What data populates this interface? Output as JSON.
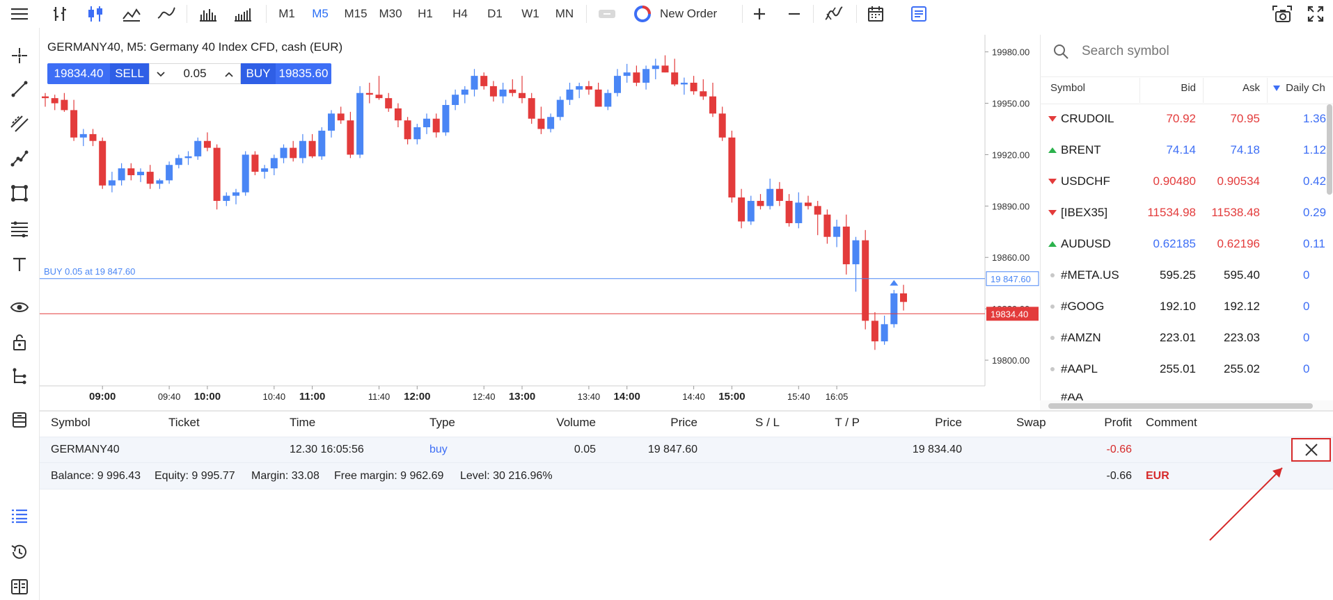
{
  "toolbar": {
    "timeframes": [
      "M1",
      "M5",
      "M15",
      "M30",
      "H1",
      "H4",
      "D1",
      "W1",
      "MN"
    ],
    "active_timeframe": "M5",
    "new_order_label": "New Order"
  },
  "chart": {
    "title": "GERMANY40, M5: Germany 40 Index CFD, cash (EUR)",
    "sell_price": "19834.40",
    "sell_label": "SELL",
    "volume": "0.05",
    "buy_label": "BUY",
    "buy_price": "19835.60",
    "position_line_label": "BUY 0.05 at 19 847.60",
    "position_price_tag": "19 847.60",
    "current_price_tag": "19834.40",
    "y_ticks": [
      "19980.00",
      "19950.00",
      "19920.00",
      "19890.00",
      "19860.00",
      "19830.00",
      "19800.00"
    ],
    "x_ticks": [
      {
        "label": "09:00",
        "bold": true
      },
      {
        "label": "09:40",
        "bold": false
      },
      {
        "label": "10:00",
        "bold": true
      },
      {
        "label": "10:40",
        "bold": false
      },
      {
        "label": "11:00",
        "bold": true
      },
      {
        "label": "11:40",
        "bold": false
      },
      {
        "label": "12:00",
        "bold": true
      },
      {
        "label": "12:40",
        "bold": false
      },
      {
        "label": "13:00",
        "bold": true
      },
      {
        "label": "13:40",
        "bold": false
      },
      {
        "label": "14:00",
        "bold": true
      },
      {
        "label": "14:40",
        "bold": false
      },
      {
        "label": "15:00",
        "bold": true
      },
      {
        "label": "15:40",
        "bold": false
      },
      {
        "label": "16:05",
        "bold": false
      }
    ],
    "colors": {
      "up": "#4a86f5",
      "down": "#e33b3b",
      "position_line": "#4a86f5",
      "price_line": "#e33b3b"
    }
  },
  "chart_data": {
    "type": "candlestick",
    "symbol": "GERMANY40",
    "timeframe": "M5",
    "ylim": [
      19785,
      19990
    ],
    "position_price": 19847.6,
    "current_price": 19834.4,
    "candles": [
      {
        "o": 19954,
        "h": 19956,
        "l": 19948,
        "c": 19953
      },
      {
        "o": 19953,
        "h": 19955,
        "l": 19946,
        "c": 19950
      },
      {
        "o": 19952,
        "h": 19956,
        "l": 19945,
        "c": 19946
      },
      {
        "o": 19946,
        "h": 19952,
        "l": 19928,
        "c": 19930
      },
      {
        "o": 19930,
        "h": 19935,
        "l": 19925,
        "c": 19932
      },
      {
        "o": 19932,
        "h": 19935,
        "l": 19925,
        "c": 19928
      },
      {
        "o": 19928,
        "h": 19930,
        "l": 19900,
        "c": 19902
      },
      {
        "o": 19902,
        "h": 19910,
        "l": 19898,
        "c": 19905
      },
      {
        "o": 19905,
        "h": 19915,
        "l": 19902,
        "c": 19912
      },
      {
        "o": 19912,
        "h": 19915,
        "l": 19905,
        "c": 19908
      },
      {
        "o": 19908,
        "h": 19912,
        "l": 19904,
        "c": 19910
      },
      {
        "o": 19910,
        "h": 19914,
        "l": 19900,
        "c": 19903
      },
      {
        "o": 19903,
        "h": 19906,
        "l": 19900,
        "c": 19905
      },
      {
        "o": 19905,
        "h": 19916,
        "l": 19903,
        "c": 19914
      },
      {
        "o": 19914,
        "h": 19920,
        "l": 19912,
        "c": 19918
      },
      {
        "o": 19918,
        "h": 19922,
        "l": 19914,
        "c": 19919
      },
      {
        "o": 19919,
        "h": 19930,
        "l": 19917,
        "c": 19928
      },
      {
        "o": 19928,
        "h": 19933,
        "l": 19922,
        "c": 19924
      },
      {
        "o": 19924,
        "h": 19926,
        "l": 19888,
        "c": 19893
      },
      {
        "o": 19893,
        "h": 19898,
        "l": 19890,
        "c": 19896
      },
      {
        "o": 19896,
        "h": 19900,
        "l": 19891,
        "c": 19898
      },
      {
        "o": 19898,
        "h": 19922,
        "l": 19896,
        "c": 19920
      },
      {
        "o": 19920,
        "h": 19922,
        "l": 19908,
        "c": 19910
      },
      {
        "o": 19910,
        "h": 19914,
        "l": 19906,
        "c": 19912
      },
      {
        "o": 19912,
        "h": 19920,
        "l": 19908,
        "c": 19918
      },
      {
        "o": 19918,
        "h": 19926,
        "l": 19915,
        "c": 19924
      },
      {
        "o": 19924,
        "h": 19928,
        "l": 19916,
        "c": 19918
      },
      {
        "o": 19918,
        "h": 19932,
        "l": 19915,
        "c": 19928
      },
      {
        "o": 19928,
        "h": 19932,
        "l": 19918,
        "c": 19919
      },
      {
        "o": 19919,
        "h": 19936,
        "l": 19917,
        "c": 19934
      },
      {
        "o": 19934,
        "h": 19946,
        "l": 19930,
        "c": 19944
      },
      {
        "o": 19944,
        "h": 19948,
        "l": 19938,
        "c": 19940
      },
      {
        "o": 19940,
        "h": 19945,
        "l": 19918,
        "c": 19920
      },
      {
        "o": 19920,
        "h": 19960,
        "l": 19918,
        "c": 19956
      },
      {
        "o": 19956,
        "h": 19962,
        "l": 19950,
        "c": 19955
      },
      {
        "o": 19955,
        "h": 19966,
        "l": 19952,
        "c": 19953
      },
      {
        "o": 19953,
        "h": 19956,
        "l": 19945,
        "c": 19947
      },
      {
        "o": 19947,
        "h": 19950,
        "l": 19936,
        "c": 19940
      },
      {
        "o": 19940,
        "h": 19942,
        "l": 19926,
        "c": 19929
      },
      {
        "o": 19929,
        "h": 19938,
        "l": 19926,
        "c": 19936
      },
      {
        "o": 19936,
        "h": 19944,
        "l": 19932,
        "c": 19941
      },
      {
        "o": 19941,
        "h": 19944,
        "l": 19930,
        "c": 19933
      },
      {
        "o": 19933,
        "h": 19952,
        "l": 19931,
        "c": 19949
      },
      {
        "o": 19949,
        "h": 19958,
        "l": 19946,
        "c": 19955
      },
      {
        "o": 19955,
        "h": 19960,
        "l": 19950,
        "c": 19958
      },
      {
        "o": 19958,
        "h": 19970,
        "l": 19954,
        "c": 19966
      },
      {
        "o": 19966,
        "h": 19968,
        "l": 19958,
        "c": 19960
      },
      {
        "o": 19960,
        "h": 19963,
        "l": 19951,
        "c": 19954
      },
      {
        "o": 19954,
        "h": 19962,
        "l": 19950,
        "c": 19958
      },
      {
        "o": 19958,
        "h": 19964,
        "l": 19954,
        "c": 19956
      },
      {
        "o": 19956,
        "h": 19966,
        "l": 19950,
        "c": 19953
      },
      {
        "o": 19953,
        "h": 19956,
        "l": 19938,
        "c": 19941
      },
      {
        "o": 19941,
        "h": 19948,
        "l": 19932,
        "c": 19935
      },
      {
        "o": 19935,
        "h": 19944,
        "l": 19933,
        "c": 19942
      },
      {
        "o": 19942,
        "h": 19954,
        "l": 19940,
        "c": 19952
      },
      {
        "o": 19952,
        "h": 19962,
        "l": 19949,
        "c": 19958
      },
      {
        "o": 19958,
        "h": 19962,
        "l": 19953,
        "c": 19960
      },
      {
        "o": 19960,
        "h": 19963,
        "l": 19955,
        "c": 19958
      },
      {
        "o": 19958,
        "h": 19962,
        "l": 19948,
        "c": 19948
      },
      {
        "o": 19948,
        "h": 19958,
        "l": 19946,
        "c": 19956
      },
      {
        "o": 19956,
        "h": 19970,
        "l": 19954,
        "c": 19966
      },
      {
        "o": 19966,
        "h": 19973,
        "l": 19962,
        "c": 19968
      },
      {
        "o": 19968,
        "h": 19972,
        "l": 19960,
        "c": 19962
      },
      {
        "o": 19962,
        "h": 19972,
        "l": 19958,
        "c": 19970
      },
      {
        "o": 19970,
        "h": 19976,
        "l": 19964,
        "c": 19972
      },
      {
        "o": 19972,
        "h": 19978,
        "l": 19968,
        "c": 19968
      },
      {
        "o": 19968,
        "h": 19976,
        "l": 19960,
        "c": 19961
      },
      {
        "o": 19961,
        "h": 19965,
        "l": 19955,
        "c": 19962
      },
      {
        "o": 19962,
        "h": 19966,
        "l": 19955,
        "c": 19957
      },
      {
        "o": 19957,
        "h": 19964,
        "l": 19952,
        "c": 19954
      },
      {
        "o": 19954,
        "h": 19962,
        "l": 19942,
        "c": 19944
      },
      {
        "o": 19944,
        "h": 19948,
        "l": 19928,
        "c": 19930
      },
      {
        "o": 19930,
        "h": 19934,
        "l": 19892,
        "c": 19895
      },
      {
        "o": 19895,
        "h": 19900,
        "l": 19877,
        "c": 19881
      },
      {
        "o": 19881,
        "h": 19896,
        "l": 19879,
        "c": 19893
      },
      {
        "o": 19893,
        "h": 19897,
        "l": 19888,
        "c": 19890
      },
      {
        "o": 19890,
        "h": 19906,
        "l": 19888,
        "c": 19900
      },
      {
        "o": 19900,
        "h": 19904,
        "l": 19890,
        "c": 19893
      },
      {
        "o": 19893,
        "h": 19897,
        "l": 19878,
        "c": 19880
      },
      {
        "o": 19880,
        "h": 19898,
        "l": 19877,
        "c": 19892
      },
      {
        "o": 19892,
        "h": 19896,
        "l": 19888,
        "c": 19890
      },
      {
        "o": 19890,
        "h": 19893,
        "l": 19873,
        "c": 19885
      },
      {
        "o": 19885,
        "h": 19888,
        "l": 19868,
        "c": 19872
      },
      {
        "o": 19872,
        "h": 19882,
        "l": 19866,
        "c": 19878
      },
      {
        "o": 19878,
        "h": 19885,
        "l": 19850,
        "c": 19856
      },
      {
        "o": 19856,
        "h": 19872,
        "l": 19840,
        "c": 19870
      },
      {
        "o": 19870,
        "h": 19876,
        "l": 19818,
        "c": 19823
      },
      {
        "o": 19823,
        "h": 19828,
        "l": 19806,
        "c": 19811
      },
      {
        "o": 19811,
        "h": 19826,
        "l": 19809,
        "c": 19821
      },
      {
        "o": 19821,
        "h": 19841,
        "l": 19819,
        "c": 19839
      },
      {
        "o": 19839,
        "h": 19844,
        "l": 19829,
        "c": 19834
      }
    ]
  },
  "symbols": {
    "search_placeholder": "Search symbol",
    "headers": {
      "symbol": "Symbol",
      "bid": "Bid",
      "ask": "Ask",
      "daily": "Daily Ch"
    },
    "rows": [
      {
        "name": "CRUDOIL",
        "bid": "70.92",
        "ask": "70.95",
        "daily": "1.36",
        "dir": "down"
      },
      {
        "name": "BRENT",
        "bid": "74.14",
        "ask": "74.18",
        "daily": "1.12",
        "dir": "up"
      },
      {
        "name": "USDCHF",
        "bid": "0.90480",
        "ask": "0.90534",
        "daily": "0.42",
        "dir": "down"
      },
      {
        "name": "[IBEX35]",
        "bid": "11534.98",
        "ask": "11538.48",
        "daily": "0.29",
        "dir": "down"
      },
      {
        "name": "AUDUSD",
        "bid": "0.62185",
        "ask": "0.62196",
        "daily": "0.11",
        "dir": "mixed"
      },
      {
        "name": "#META.US",
        "bid": "595.25",
        "ask": "595.40",
        "daily": "0",
        "dir": "flat"
      },
      {
        "name": "#GOOG",
        "bid": "192.10",
        "ask": "192.12",
        "daily": "0",
        "dir": "flat"
      },
      {
        "name": "#AMZN",
        "bid": "223.01",
        "ask": "223.03",
        "daily": "0",
        "dir": "flat"
      },
      {
        "name": "#AAPL",
        "bid": "255.01",
        "ask": "255.02",
        "daily": "0",
        "dir": "flat"
      }
    ]
  },
  "positions": {
    "headers": [
      "Symbol",
      "Ticket",
      "Time",
      "Type",
      "Volume",
      "Price",
      "S / L",
      "T / P",
      "Price",
      "Swap",
      "Profit",
      "Comment"
    ],
    "row": {
      "symbol": "GERMANY40",
      "time": "12.30 16:05:56",
      "type": "buy",
      "volume": "0.05",
      "price": "19 847.60",
      "current_price": "19 834.40",
      "profit": "-0.66"
    },
    "summary": {
      "balance": "Balance: 9 996.43",
      "equity": "Equity: 9 995.77",
      "margin": "Margin: 33.08",
      "free_margin": "Free margin: 9 962.69",
      "level": "Level: 30 216.96%",
      "profit": "-0.66",
      "currency": "EUR"
    }
  }
}
